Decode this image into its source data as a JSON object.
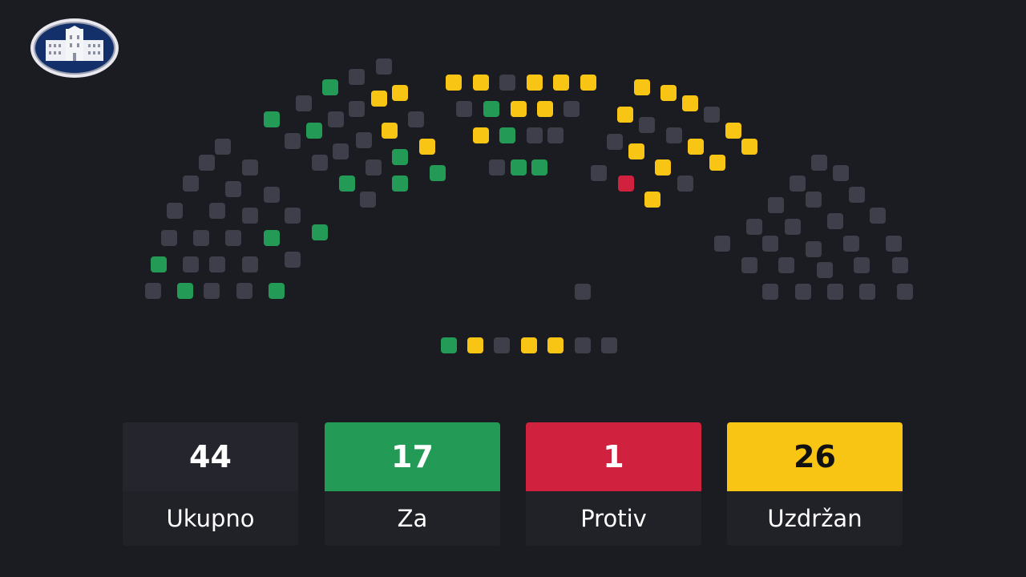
{
  "colors": {
    "background": "#1b1b22",
    "absent": "#3f3f4b",
    "for": "#239a55",
    "against": "#d0213f",
    "abstain": "#f8c514",
    "total": "#25252e"
  },
  "logo": {
    "icon": "parliament-building-emblem"
  },
  "seats": [
    "absent",
    "absent",
    "for",
    "abstain",
    "abstain",
    "absent",
    "absent",
    "for",
    "absent",
    "absent",
    "for",
    "abstain",
    "absent",
    "absent",
    "absent",
    "absent",
    "abstain",
    "for",
    "absent",
    "absent",
    "absent",
    "for",
    "absent",
    "absent",
    "absent",
    "for",
    "for",
    "absent",
    "absent",
    "absent",
    "absent",
    "absent",
    "absent",
    "for",
    "absent",
    "absent",
    "absent",
    "for",
    "absent",
    "for",
    "absent",
    "absent",
    "absent",
    "absent",
    "for",
    "absent",
    "absent",
    "for",
    "abstain",
    "abstain",
    "absent",
    "abstain",
    "abstain",
    "abstain",
    "abstain",
    "abstain",
    "abstain",
    "absent",
    "abstain",
    "absent",
    "for",
    "abstain",
    "abstain",
    "absent",
    "absent",
    "absent",
    "abstain",
    "abstain",
    "for",
    "absent",
    "absent",
    "absent",
    "abstain",
    "abstain",
    "abstain",
    "abstain",
    "absent",
    "for",
    "for",
    "absent",
    "abstain",
    "against",
    "absent",
    "abstain",
    "absent",
    "absent",
    "absent",
    "absent",
    "absent",
    "absent",
    "absent",
    "absent",
    "absent",
    "absent",
    "absent",
    "absent",
    "absent",
    "absent",
    "absent",
    "absent",
    "absent",
    "absent",
    "absent",
    "absent",
    "absent",
    "absent",
    "absent",
    "absent",
    "absent",
    "absent",
    "for",
    "abstain",
    "absent",
    "abstain",
    "abstain",
    "absent",
    "absent"
  ],
  "results": [
    {
      "key": "total",
      "value": "44",
      "label": "Ukupno"
    },
    {
      "key": "for",
      "value": "17",
      "label": "Za"
    },
    {
      "key": "against",
      "value": "1",
      "label": "Protiv"
    },
    {
      "key": "abstain",
      "value": "26",
      "label": "Uzdržan"
    }
  ]
}
